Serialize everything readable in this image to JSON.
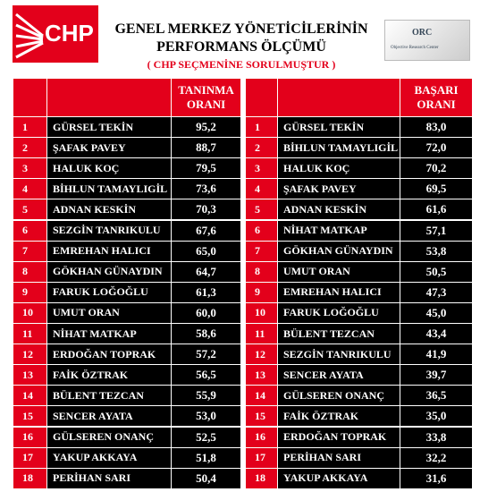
{
  "header": {
    "logo_left": "CHP",
    "title_line1": "GENEL MERKEZ YÖNETİCİLERİNİN",
    "title_line2": "PERFORMANS ÖLÇÜMÜ",
    "subtitle": "( CHP  SEÇMENİNE SORULMUŞTUR )",
    "logo_right": "ORC",
    "logo_right_sub": "Objective Research Center"
  },
  "tables": [
    {
      "header": "TANINMA ORANI",
      "rows": [
        [
          "1",
          "GÜRSEL TEKİN",
          "95,2"
        ],
        [
          "2",
          "ŞAFAK PAVEY",
          "88,7"
        ],
        [
          "3",
          "HALUK KOÇ",
          "79,5"
        ],
        [
          "4",
          "BİHLUN TAMAYLIGİL",
          "73,6"
        ],
        [
          "5",
          "ADNAN KESKİN",
          "70,3"
        ],
        [
          "6",
          "SEZGİN TANRIKULU",
          "67,6"
        ],
        [
          "7",
          "EMREHAN HALICI",
          "65,0"
        ],
        [
          "8",
          "GÖKHAN GÜNAYDIN",
          "64,7"
        ],
        [
          "9",
          "FARUK LOĞOĞLU",
          "61,3"
        ],
        [
          "10",
          "UMUT ORAN",
          "60,0"
        ],
        [
          "11",
          "NİHAT MATKAP",
          "58,6"
        ],
        [
          "12",
          "ERDOĞAN TOPRAK",
          "57,2"
        ],
        [
          "13",
          "FAİK ÖZTRAK",
          "56,5"
        ],
        [
          "14",
          "BÜLENT TEZCAN",
          "55,9"
        ],
        [
          "15",
          "SENCER AYATA",
          "53,0"
        ],
        [
          "16",
          "GÜLSEREN ONANÇ",
          "52,5"
        ],
        [
          "17",
          "YAKUP AKKAYA",
          "51,8"
        ],
        [
          "18",
          "PERİHAN SARI",
          "50,4"
        ]
      ]
    },
    {
      "header": "BAŞARI ORANI",
      "rows": [
        [
          "1",
          "GÜRSEL TEKİN",
          "83,0"
        ],
        [
          "2",
          "BİHLUN TAMAYLIGİL",
          "72,0"
        ],
        [
          "3",
          "HALUK KOÇ",
          "70,2"
        ],
        [
          "4",
          "ŞAFAK PAVEY",
          "69,5"
        ],
        [
          "5",
          "ADNAN KESKİN",
          "61,6"
        ],
        [
          "6",
          "NİHAT MATKAP",
          "57,1"
        ],
        [
          "7",
          "GÖKHAN GÜNAYDIN",
          "53,8"
        ],
        [
          "8",
          "UMUT ORAN",
          "50,5"
        ],
        [
          "9",
          "EMREHAN HALICI",
          "47,3"
        ],
        [
          "10",
          "FARUK LOĞOĞLU",
          "45,0"
        ],
        [
          "11",
          "BÜLENT TEZCAN",
          "43,4"
        ],
        [
          "12",
          "SEZGİN TANRIKULU",
          "41,9"
        ],
        [
          "13",
          "SENCER AYATA",
          "39,7"
        ],
        [
          "14",
          "GÜLSEREN ONANÇ",
          "36,5"
        ],
        [
          "15",
          "FAİK ÖZTRAK",
          "35,0"
        ],
        [
          "16",
          "ERDOĞAN TOPRAK",
          "33,8"
        ],
        [
          "17",
          "PERİHAN SARI",
          "32,2"
        ],
        [
          "18",
          "YAKUP AKKAYA",
          "31,6"
        ]
      ]
    }
  ]
}
